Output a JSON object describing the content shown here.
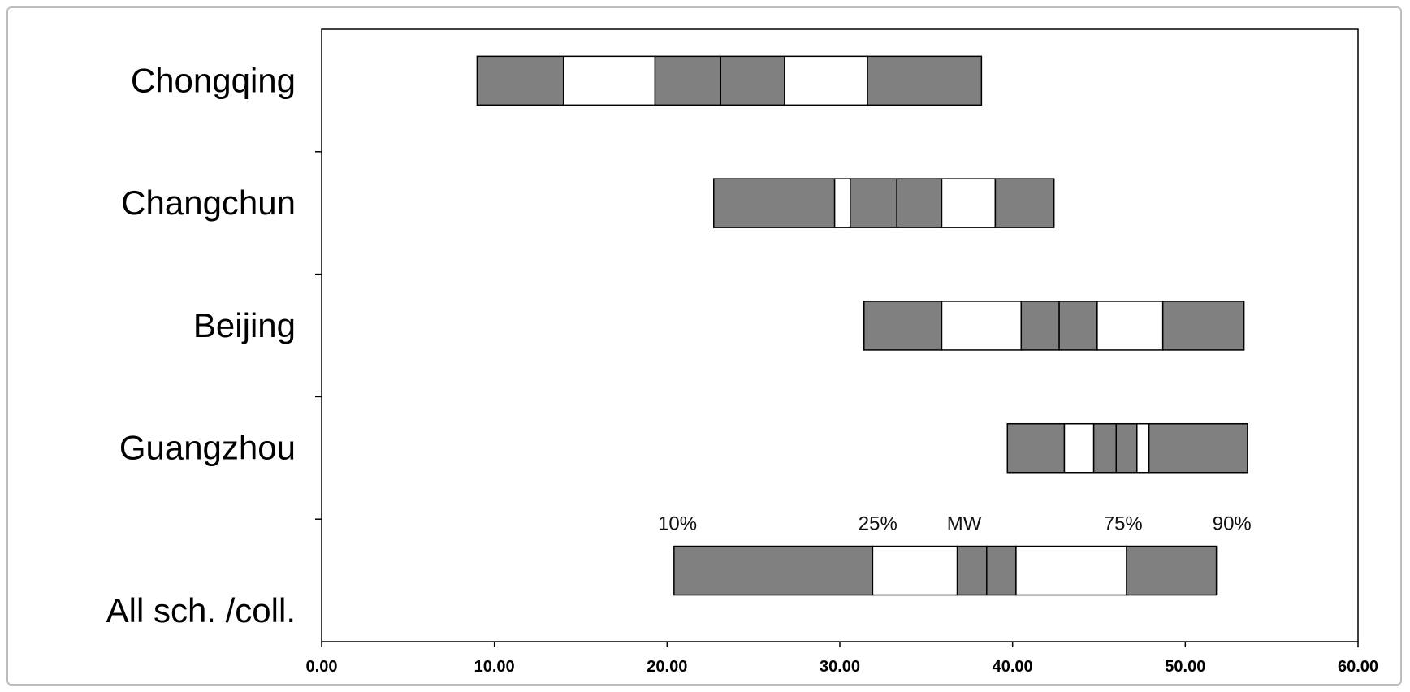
{
  "chart_data": {
    "type": "bar",
    "subtype": "horizontal-stacked-percentile-boxes",
    "xlim": [
      0,
      60
    ],
    "x_ticks": [
      0,
      10,
      20,
      30,
      40,
      50,
      60
    ],
    "x_tick_labels": [
      "0.00",
      "10.00",
      "20.00",
      "30.00",
      "40.00",
      "50.00",
      "60.00"
    ],
    "categories": [
      "Chongqing",
      "Changchun",
      "Beijing",
      "Guangzhou",
      "All sch. /coll."
    ],
    "segment_fill_pattern": [
      "dark",
      "light",
      "dark",
      "dark",
      "light",
      "dark"
    ],
    "colors": {
      "dark": "#808080",
      "light": "#ffffff",
      "outline": "#000000",
      "axis": "#000000"
    },
    "rows": [
      {
        "category": "Chongqing",
        "boundaries": [
          9.0,
          14.0,
          19.3,
          23.1,
          26.8,
          31.6,
          38.2
        ]
      },
      {
        "category": "Changchun",
        "boundaries": [
          22.7,
          29.7,
          30.6,
          33.3,
          35.9,
          39.0,
          42.4
        ]
      },
      {
        "category": "Beijing",
        "boundaries": [
          31.4,
          35.9,
          40.5,
          42.7,
          44.9,
          48.7,
          53.4
        ]
      },
      {
        "category": "Guangzhou",
        "boundaries": [
          39.7,
          43.0,
          44.7,
          46.0,
          47.2,
          47.9,
          53.6
        ]
      },
      {
        "category": "All sch. /coll.",
        "boundaries": [
          20.4,
          31.9,
          36.8,
          38.5,
          40.2,
          46.6,
          51.8
        ]
      }
    ],
    "annotations": [
      {
        "text": "10%",
        "x": 20.5
      },
      {
        "text": "25%",
        "x": 31.5
      },
      {
        "text": "MW",
        "x": 38.5
      },
      {
        "text": "75%",
        "x": 46.5
      },
      {
        "text": "90%",
        "x": 53.5
      }
    ],
    "legend": "none",
    "grid": false
  }
}
